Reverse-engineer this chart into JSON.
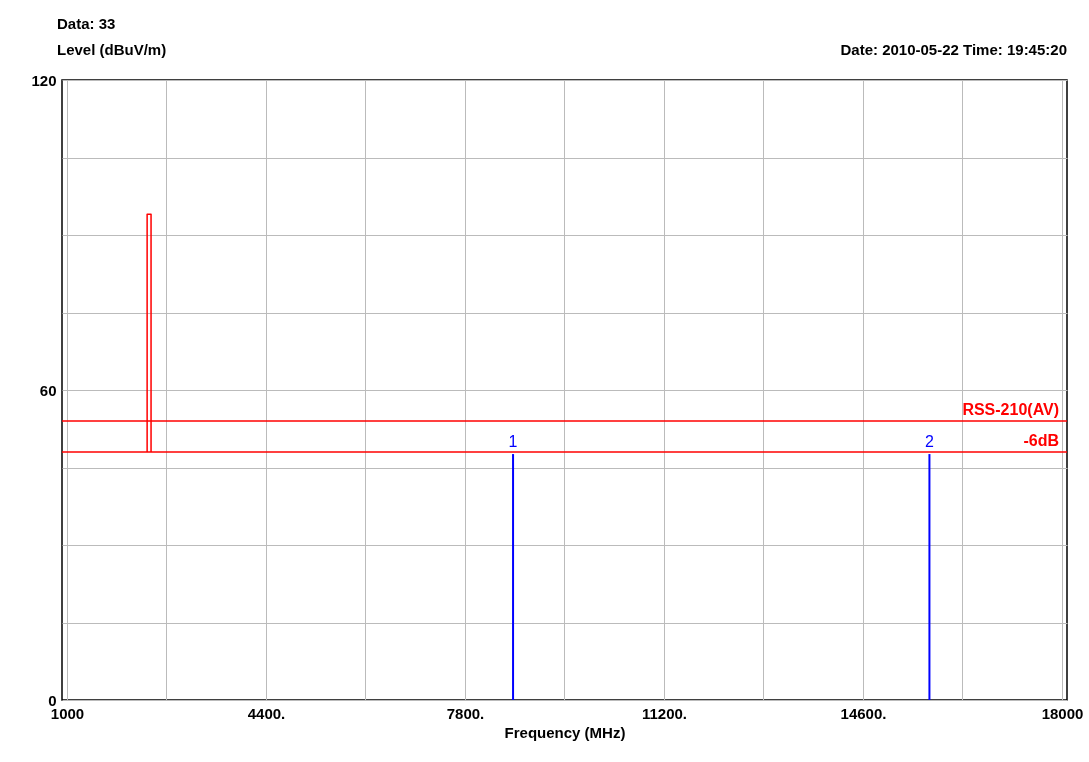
{
  "chart_data": {
    "type": "line",
    "xlabel": "Frequency (MHz)",
    "ylabel": "Level (dBuV/m)",
    "annotations": [
      "Data: 33",
      "Date: 2010-05-22  Time: 19:45:20",
      {
        "text": "1",
        "x": 8621,
        "y": 47.6
      },
      {
        "text": "2",
        "x": 15735,
        "y": 47.6
      }
    ],
    "xlim": [
      1000,
      18000
    ],
    "xticks": [
      {
        "value": 1000,
        "label": "1000"
      },
      {
        "value": 2700,
        "label": null
      },
      {
        "value": 4400,
        "label": "4400."
      },
      {
        "value": 6100,
        "label": null
      },
      {
        "value": 7800,
        "label": "7800."
      },
      {
        "value": 9500,
        "label": null
      },
      {
        "value": 11200,
        "label": "11200."
      },
      {
        "value": 12900,
        "label": null
      },
      {
        "value": 14600,
        "label": "14600."
      },
      {
        "value": 16300,
        "label": null
      },
      {
        "value": 18000,
        "label": "18000"
      }
    ],
    "ylim": [
      0,
      120
    ],
    "yticks": [
      0,
      {
        "value": 15,
        "label": null
      },
      {
        "value": 30,
        "label": null
      },
      {
        "value": 45,
        "label": null
      },
      60,
      {
        "value": 75,
        "label": null
      },
      {
        "value": 90,
        "label": null
      },
      {
        "value": 105,
        "label": null
      },
      120
    ],
    "grid": true,
    "series": [
      {
        "color": "#ff0000",
        "x": [
          2369,
          2369,
          2436,
          2436
        ],
        "values": [
          48,
          94,
          94,
          48
        ]
      },
      {
        "type": "bar",
        "color": "#0000ff",
        "x": [
          8621,
          15735
        ],
        "values": [
          47.6,
          47.6
        ]
      }
    ],
    "ref_lines": [
      {
        "axis": "y",
        "value": 54,
        "label": "RSS-210(AV)",
        "color": "#ff0000"
      },
      {
        "axis": "y",
        "value": 48,
        "label": "-6dB",
        "color": "#ff0000"
      }
    ]
  }
}
